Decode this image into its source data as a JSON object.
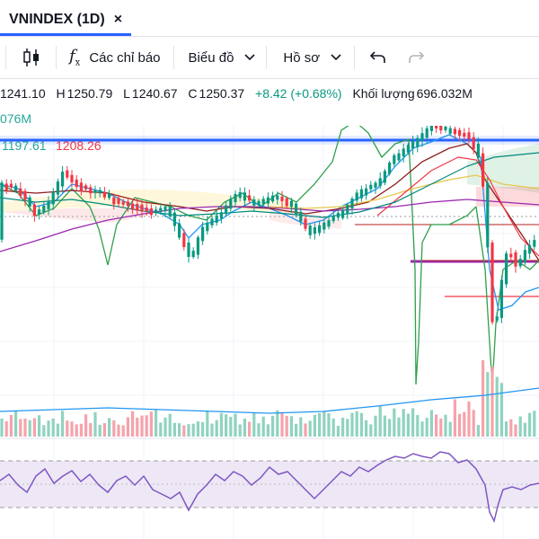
{
  "tab": {
    "title": "VNINDEX (1D)",
    "close": "×"
  },
  "toolbar": {
    "indicators_label": "Các chỉ báo",
    "chart_label": "Biểu đồ",
    "profile_label": "Hồ sơ",
    "undo_icon": "undo-icon",
    "redo_icon": "redo-icon"
  },
  "ohlc": {
    "open_value": "1241.10",
    "high_label": "H",
    "high_value": "1250.79",
    "low_label": "L",
    "low_value": "1240.67",
    "close_label": "C",
    "close_value": "1250.37",
    "change": "+8.42 (+0.68%)",
    "volume_label": "Khối lượng",
    "volume_value": "696.032M"
  },
  "volume_ma": "076M",
  "band": {
    "lower": "1197.61",
    "upper": "1208.26"
  },
  "colors": {
    "up": "#089981",
    "down": "#f23645",
    "accent": "#2962ff",
    "rsi_fill": "#ede7f6",
    "rsi_line": "#7e57c2"
  }
}
